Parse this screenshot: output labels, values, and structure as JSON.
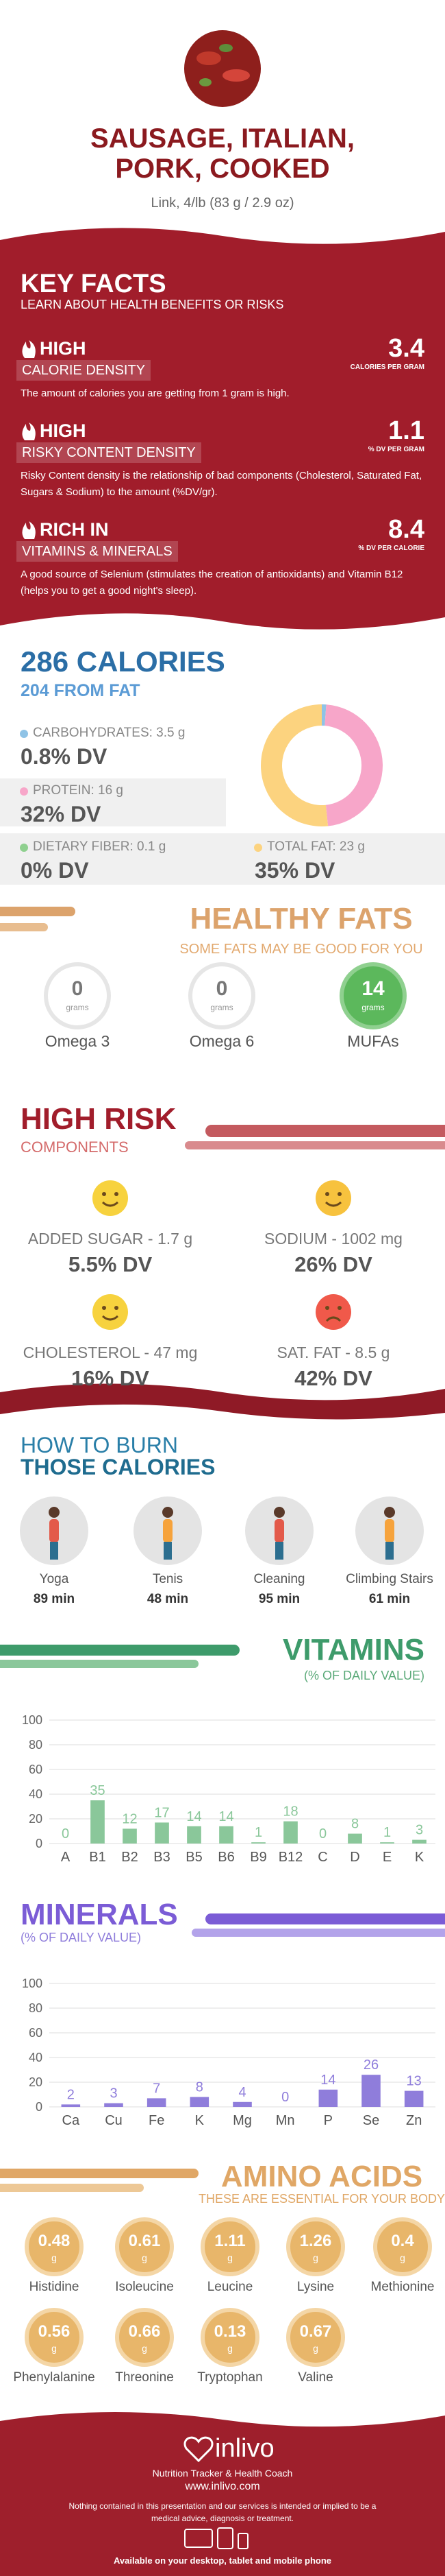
{
  "header": {
    "title": "SAUSAGE, ITALIAN, PORK, COOKED",
    "serving": "Link, 4/lb (83 g / 2.9 oz)"
  },
  "key_facts": {
    "title": "KEY FACTS",
    "subtitle": "LEARN ABOUT HEALTH BENEFITS OR RISKS",
    "facts": [
      {
        "level": "HIGH",
        "name": "CALORIE DENSITY",
        "value": 3.4,
        "unit": "CALORIES PER GRAM",
        "description": "The amount of calories you are getting from 1 gram is high."
      },
      {
        "level": "HIGH",
        "name": "RISKY CONTENT DENSITY",
        "value": 1.1,
        "unit": "% DV PER GRAM",
        "description": "Risky Content density is the relationship of bad components (Cholesterol, Saturated Fat, Sugars & Sodium) to the amount (%DV/gr)."
      },
      {
        "level": "RICH IN",
        "name": "VITAMINS & MINERALS",
        "value": 8.4,
        "unit": "% DV PER CALORIE",
        "description": "A good source of Selenium (stimulates the creation of antioxidants) and Vitamin B12 (helps you to get a good night's sleep)."
      }
    ]
  },
  "calories": {
    "title": "286 CALORIES",
    "subtitle": "204 FROM FAT",
    "nutrients": [
      {
        "name": "CARBOHYDRATES: 3.5 g",
        "dv": 0.8,
        "dv_label": "0.8% DV",
        "color": "#8fc3e6"
      },
      {
        "name": "PROTEIN: 16 g",
        "dv": 32,
        "dv_label": "32% DV",
        "color": "#f7a6c9"
      },
      {
        "name": "DIETARY FIBER: 0.1 g",
        "dv": 0,
        "dv_label": "0% DV",
        "color": "#8fd08f"
      },
      {
        "name": "TOTAL FAT: 23 g",
        "dv": 35,
        "dv_label": "35% DV",
        "color": "#fcd37f"
      }
    ]
  },
  "healthy_fats": {
    "title": "HEALTHY FATS",
    "subtitle": "SOME FATS MAY BE GOOD FOR YOU",
    "unit": "grams",
    "items": [
      {
        "name": "Omega 3",
        "value": 0,
        "color": "#ffffff"
      },
      {
        "name": "Omega 6",
        "value": 0,
        "color": "#ffffff"
      },
      {
        "name": "MUFAs",
        "value": 14,
        "color": "#5cb85c"
      }
    ]
  },
  "high_risk": {
    "title": "HIGH RISK",
    "subtitle": "COMPONENTS",
    "items": [
      {
        "name": "ADDED SUGAR - 1.7 g",
        "dv_label": "5.5% DV",
        "color": "#f7d23e",
        "mood": "happy"
      },
      {
        "name": "SODIUM - 1002 mg",
        "dv_label": "26% DV",
        "color": "#f7c23e",
        "mood": "happy"
      },
      {
        "name": "CHOLESTEROL - 47 mg",
        "dv_label": "16% DV",
        "color": "#f7d23e",
        "mood": "happy"
      },
      {
        "name": "SAT. FAT - 8.5 g",
        "dv_label": "42% DV",
        "color": "#f0594a",
        "mood": "sad"
      }
    ]
  },
  "burn": {
    "title_1": "HOW TO BURN",
    "title_2": "THOSE CALORIES",
    "activities": [
      {
        "name": "Yoga",
        "time": "89 min"
      },
      {
        "name": "Tenis",
        "time": "48 min"
      },
      {
        "name": "Cleaning",
        "time": "95 min"
      },
      {
        "name": "Climbing Stairs",
        "time": "61 min"
      }
    ]
  },
  "vitamins": {
    "title": "VITAMINS",
    "subtitle": "(% OF DAILY VALUE)",
    "chart": {
      "type": "bar",
      "categories": [
        "A",
        "B1",
        "B2",
        "B3",
        "B5",
        "B6",
        "B9",
        "B12",
        "C",
        "D",
        "E",
        "K"
      ],
      "values": [
        0,
        35,
        12,
        17,
        14,
        14,
        1,
        18,
        0,
        8,
        1,
        3
      ],
      "color": "#8ac79a",
      "ylim": [
        0,
        100
      ],
      "yticks": [
        0,
        20,
        40,
        60,
        80,
        100
      ],
      "grid": true
    }
  },
  "minerals": {
    "title": "MINERALS",
    "subtitle": "(% OF DAILY VALUE)",
    "chart": {
      "type": "bar",
      "categories": [
        "Ca",
        "Cu",
        "Fe",
        "K",
        "Mg",
        "Mn",
        "P",
        "Se",
        "Zn"
      ],
      "values": [
        2,
        3,
        7,
        8,
        4,
        0,
        14,
        26,
        13
      ],
      "color": "#8f7ddb",
      "ylim": [
        0,
        100
      ],
      "yticks": [
        0,
        20,
        40,
        60,
        80,
        100
      ],
      "grid": true
    }
  },
  "amino_acids": {
    "title": "AMINO ACIDS",
    "subtitle": "THESE ARE ESSENTIAL FOR YOUR BODY",
    "unit": "g",
    "items": [
      {
        "name": "Histidine",
        "value": 0.48
      },
      {
        "name": "Isoleucine",
        "value": 0.61
      },
      {
        "name": "Leucine",
        "value": 1.11
      },
      {
        "name": "Lysine",
        "value": 1.26
      },
      {
        "name": "Methionine",
        "value": 0.4
      },
      {
        "name": "Phenylalanine",
        "value": 0.56
      },
      {
        "name": "Threonine",
        "value": 0.66
      },
      {
        "name": "Tryptophan",
        "value": 0.13
      },
      {
        "name": "Valine",
        "value": 0.67
      }
    ]
  },
  "footer": {
    "brand": "inlivo",
    "tagline": "Nutrition Tracker & Health Coach",
    "url": "www.inlivo.com",
    "disclaimer": "Nothing contained in this presentation and our services is intended or implied to be a medical advice, diagnosis or treatment.",
    "availability": "Available on your desktop, tablet and mobile phone"
  }
}
